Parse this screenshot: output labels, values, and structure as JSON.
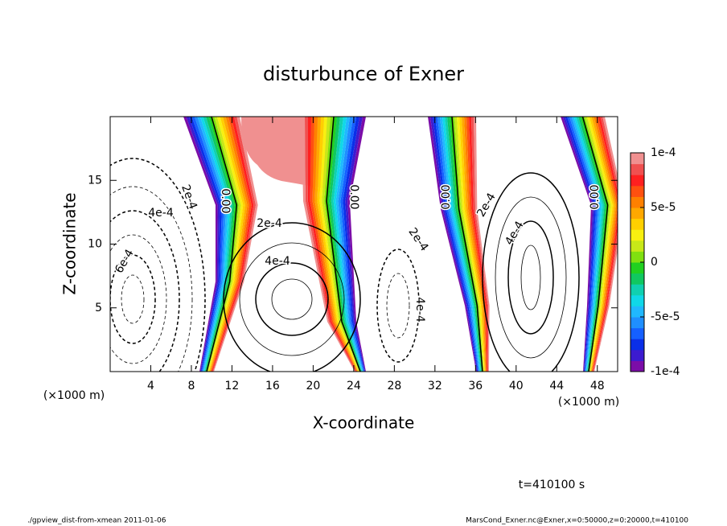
{
  "chart_data": {
    "type": "contour",
    "title": "disturbunce of Exner",
    "x_label": "X-coordinate",
    "y_label": "Z-coordinate",
    "x_unit_label": "(×1000 m)",
    "xlim": [
      0,
      50
    ],
    "xticks": [
      4,
      8,
      12,
      16,
      20,
      24,
      28,
      32,
      36,
      40,
      44,
      48
    ],
    "ylim": [
      0,
      20
    ],
    "yticks": [
      5,
      10,
      15
    ],
    "colorbar": {
      "lim": [
        -0.0001,
        0.0001
      ],
      "ticks": [
        {
          "value": 0.0001,
          "label": "1e-4"
        },
        {
          "value": 5e-05,
          "label": "5e-5"
        },
        0,
        {
          "value": -5e-05,
          "label": "-5e-5"
        },
        {
          "value": -0.0001,
          "label": "-1e-4"
        }
      ],
      "colors": [
        "#7b0da8",
        "#3c1bd0",
        "#0a2fe8",
        "#1560ff",
        "#1f8fff",
        "#20b8ff",
        "#10d8e8",
        "#10d0b0",
        "#10c860",
        "#20d020",
        "#80e010",
        "#c8e818",
        "#f8f010",
        "#ffd000",
        "#ffa800",
        "#ff8000",
        "#ff5010",
        "#ff2020",
        "#f05050",
        "#f09090"
      ]
    },
    "contour_labels": [
      "2e-4",
      "4e-4",
      "6e-4",
      "0.00",
      "2e-4",
      "4e-4",
      "0.00",
      "2e-4",
      "4e-4",
      "0.00",
      "2e-4",
      "4e-4",
      "0.00"
    ],
    "annotation": "t=410100 s",
    "footer_left": "./gpview_dist-from-xmean  2011-01-06",
    "footer_right": "MarsCond_Exner.nc@Exner,x=0:50000,z=0:20000,t=410100"
  }
}
